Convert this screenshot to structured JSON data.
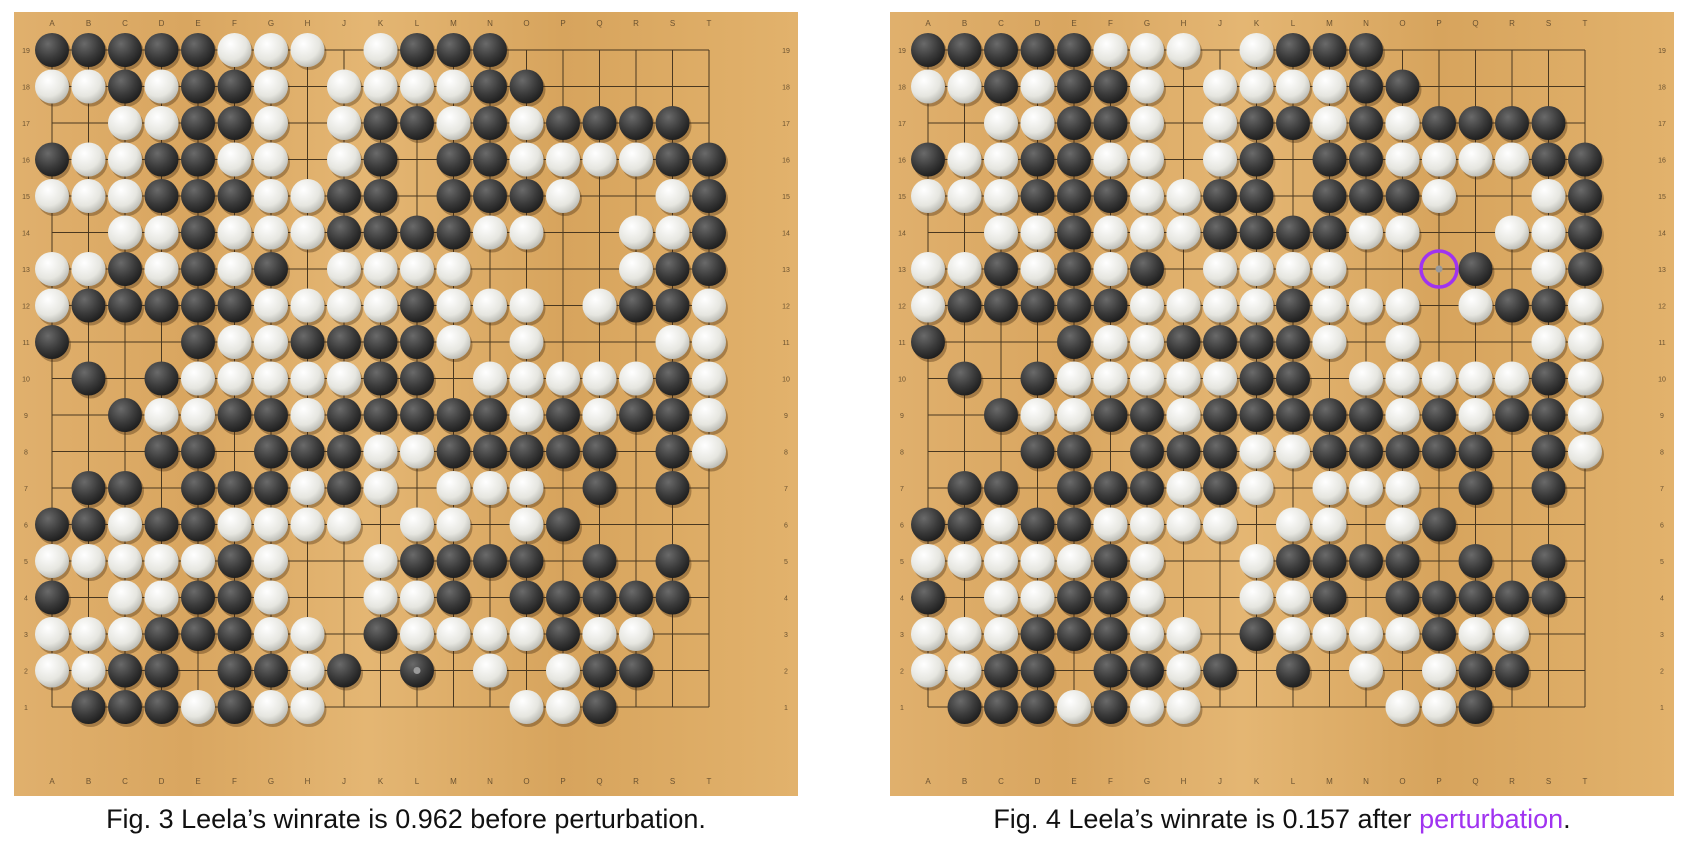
{
  "colors": {
    "highlight": "#a033f0",
    "black_stone": "#3a3a3a",
    "white_stone": "#e6e6e0",
    "grid_line": "#4a3820"
  },
  "coordinates": {
    "columns": [
      "A",
      "B",
      "C",
      "D",
      "E",
      "F",
      "G",
      "H",
      "J",
      "K",
      "L",
      "M",
      "N",
      "O",
      "P",
      "Q",
      "R",
      "S",
      "T"
    ],
    "rows": [
      "19",
      "18",
      "17",
      "16",
      "15",
      "14",
      "13",
      "12",
      "11",
      "10",
      "9",
      "8",
      "7",
      "6",
      "5",
      "4",
      "3",
      "2",
      "1"
    ]
  },
  "figures": [
    {
      "id": "fig3",
      "caption_parts": [
        "Fig. 3 Leela’s winrate is 0.962 before perturbation."
      ],
      "board": [
        "BBBBBWWW.WBBB......",
        "WWBWBBW.WWWWBB.....",
        "..WWBBW.WBBWBWBBBB.",
        "BWWBBWW.WB.BBWWWWBB",
        "WWWBBBWWBB.BBBW..WB",
        "..WWBWWWBBBBWW..WWB",
        "WWBWBWB.WWWW....WBB",
        "WBBBBBWWWWBWWW.WBBW",
        "B...BWWBBBBW.W...WWW",
        ".B.BWWWWWBB.WWWWWBW",
        "..BWWBBWBBBBBWBWBBW",
        "...BB.BBBWWBBBBB.BW",
        ".BB.BBBWBW.WWW.B.B.",
        "BBWBBWWWW.WW.WB....B",
        "WWWWWBW..WBBBB.B.B.",
        "B.WWBBW..WWB.BBBBB.",
        "WWWBBBWW.BWWWWBWW..",
        "WWBB.BBWB.B.W.WBB..",
        ".BBBWBWW.....WWB..."
      ],
      "marker": {
        "col": 10,
        "row": 17,
        "type": "last-move"
      }
    },
    {
      "id": "fig4",
      "caption_parts": [
        "Fig. 4 Leela’s winrate is 0.157 after ",
        "perturbation",
        "."
      ],
      "board": [
        "BBBBBWWW.WBBB......",
        "WWBWBBW.WWWWBB.....",
        "..WWBBW.WBBWBWBBBB.",
        "BWWBBWW.WB.BBWWWWBB",
        "WWWBBBWWBB.BBBW..WB",
        "..WWBWWWBBBBWW..WWB",
        "WWBWBWB.WWWW...B.WBB",
        "WBBBBBWWWWBWWW.WBBW",
        "B...BWWBBBBW.W...WWW",
        ".B.BWWWWWBB.WWWWWBW",
        "..BWWBBWBBBBBWBWBBW",
        "...BB.BBBWWBBBBB.BW",
        ".BB.BBBWBW.WWW.B.B.",
        "BBWBBWWWW.WW.WB....B",
        "WWWWWBW..WBBBB.B.B.",
        "B.WWBBW..WWB.BBBBB.",
        "WWWBBBWW.BWWWWBWW..",
        "WWBB.BBWB.B.W.WBB..",
        ".BBBWBWW.....WWB..."
      ],
      "marker": {
        "col": 14,
        "row": 6,
        "type": "perturbation"
      }
    }
  ]
}
